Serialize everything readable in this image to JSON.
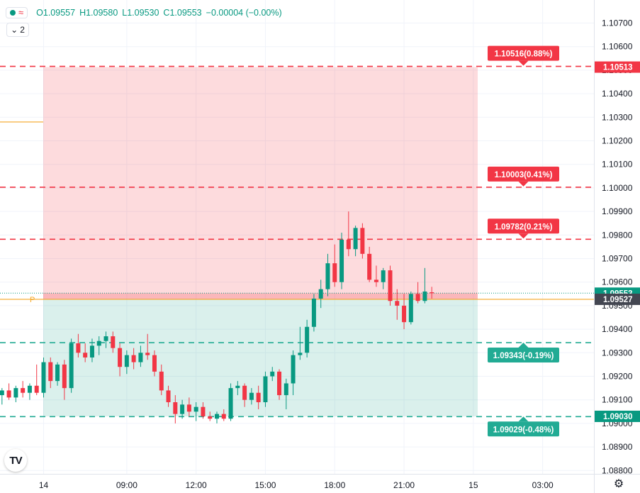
{
  "legend": {
    "ohlc": [
      {
        "label": "O",
        "value": "1.09557"
      },
      {
        "label": "H",
        "value": "1.09580"
      },
      {
        "label": "L",
        "value": "1.09530"
      },
      {
        "label": "C",
        "value": "1.09553"
      }
    ],
    "change": "−0.00004 (−0.00%)",
    "indicator_count": "2",
    "up_color": "#089981",
    "down_color": "#f23645"
  },
  "price_scale": {
    "ticks": [
      "1.10700",
      "1.10600",
      "1.10500",
      "1.10400",
      "1.10300",
      "1.10200",
      "1.10100",
      "1.10000",
      "1.09900",
      "1.09800",
      "1.09700",
      "1.09600",
      "1.09500",
      "1.09400",
      "1.09300",
      "1.09200",
      "1.09100",
      "1.09000",
      "1.08900",
      "1.08800"
    ],
    "badges": [
      {
        "text": "1.10513",
        "price": 1.10513,
        "color": "#f23645"
      },
      {
        "text": "1.09553",
        "price": 1.09553,
        "color": "#089981"
      },
      {
        "text": "1.09527",
        "price": 1.09527,
        "color": "#434651"
      },
      {
        "text": "1.09030",
        "price": 1.0903,
        "color": "#089981"
      }
    ]
  },
  "time_scale": {
    "labels": [
      {
        "text": "14",
        "index": 0
      },
      {
        "text": "09:00",
        "index": 12
      },
      {
        "text": "12:00",
        "index": 22
      },
      {
        "text": "15:00",
        "index": 32
      },
      {
        "text": "18:00",
        "index": 42
      },
      {
        "text": "21:00",
        "index": 52
      },
      {
        "text": "15",
        "index": 62
      },
      {
        "text": "03:00",
        "index": 72
      }
    ]
  },
  "position": {
    "entry": 1.09527,
    "stop_top": 1.10513,
    "target_bottom": 1.0903,
    "entry_marker": "P",
    "levels": [
      {
        "price": 1.10516,
        "label": "1.10516(0.88%)",
        "color": "#f23645"
      },
      {
        "price": 1.10003,
        "label": "1.10003(0.41%)",
        "color": "#f23645"
      },
      {
        "price": 1.09782,
        "label": "1.09782(0.21%)",
        "color": "#f23645"
      },
      {
        "price": 1.09343,
        "label": "1.09343(-0.19%)",
        "color": "#22ab94"
      },
      {
        "price": 1.09029,
        "label": "1.09029(-0.48%)",
        "color": "#22ab94"
      }
    ]
  },
  "chart_data": {
    "type": "candlestick",
    "symbol_interval": "15m",
    "price_range": [
      1.0874,
      1.108
    ],
    "current_price": 1.09553,
    "candles": [
      {
        "i": -6,
        "o": 1.0912,
        "h": 1.0915,
        "l": 1.0908,
        "c": 1.0914
      },
      {
        "i": -5,
        "o": 1.0914,
        "h": 1.0917,
        "l": 1.091,
        "c": 1.0911
      },
      {
        "i": -4,
        "o": 1.0911,
        "h": 1.0916,
        "l": 1.0909,
        "c": 1.0915
      },
      {
        "i": -3,
        "o": 1.0915,
        "h": 1.0918,
        "l": 1.0911,
        "c": 1.0913
      },
      {
        "i": -2,
        "o": 1.0913,
        "h": 1.0917,
        "l": 1.091,
        "c": 1.0916
      },
      {
        "i": -1,
        "o": 1.0916,
        "h": 1.0925,
        "l": 1.0912,
        "c": 1.0913
      },
      {
        "i": 0,
        "o": 1.0913,
        "h": 1.0928,
        "l": 1.0911,
        "c": 1.0926
      },
      {
        "i": 1,
        "o": 1.0926,
        "h": 1.0928,
        "l": 1.0915,
        "c": 1.0918
      },
      {
        "i": 2,
        "o": 1.0918,
        "h": 1.0926,
        "l": 1.0916,
        "c": 1.0925
      },
      {
        "i": 3,
        "o": 1.0925,
        "h": 1.0927,
        "l": 1.091,
        "c": 1.0915
      },
      {
        "i": 4,
        "o": 1.0915,
        "h": 1.0936,
        "l": 1.0913,
        "c": 1.0934
      },
      {
        "i": 5,
        "o": 1.0934,
        "h": 1.0938,
        "l": 1.0928,
        "c": 1.093
      },
      {
        "i": 6,
        "o": 1.093,
        "h": 1.0934,
        "l": 1.0926,
        "c": 1.0928
      },
      {
        "i": 7,
        "o": 1.0928,
        "h": 1.0936,
        "l": 1.0926,
        "c": 1.0933
      },
      {
        "i": 8,
        "o": 1.0933,
        "h": 1.0937,
        "l": 1.0929,
        "c": 1.0935
      },
      {
        "i": 9,
        "o": 1.0935,
        "h": 1.0939,
        "l": 1.0932,
        "c": 1.0937
      },
      {
        "i": 10,
        "o": 1.0937,
        "h": 1.0939,
        "l": 1.093,
        "c": 1.0932
      },
      {
        "i": 11,
        "o": 1.0932,
        "h": 1.0934,
        "l": 1.092,
        "c": 1.0924
      },
      {
        "i": 12,
        "o": 1.0924,
        "h": 1.0931,
        "l": 1.0921,
        "c": 1.0929
      },
      {
        "i": 13,
        "o": 1.0929,
        "h": 1.0932,
        "l": 1.0923,
        "c": 1.0926
      },
      {
        "i": 14,
        "o": 1.0926,
        "h": 1.0933,
        "l": 1.0924,
        "c": 1.093
      },
      {
        "i": 15,
        "o": 1.093,
        "h": 1.0938,
        "l": 1.0927,
        "c": 1.0929
      },
      {
        "i": 16,
        "o": 1.0929,
        "h": 1.0931,
        "l": 1.092,
        "c": 1.0922
      },
      {
        "i": 17,
        "o": 1.0922,
        "h": 1.0925,
        "l": 1.0912,
        "c": 1.0914
      },
      {
        "i": 18,
        "o": 1.0914,
        "h": 1.0916,
        "l": 1.0907,
        "c": 1.0909
      },
      {
        "i": 19,
        "o": 1.0909,
        "h": 1.0912,
        "l": 1.09,
        "c": 1.0904
      },
      {
        "i": 20,
        "o": 1.0904,
        "h": 1.091,
        "l": 1.0902,
        "c": 1.0908
      },
      {
        "i": 21,
        "o": 1.0908,
        "h": 1.0911,
        "l": 1.0903,
        "c": 1.0905
      },
      {
        "i": 22,
        "o": 1.0905,
        "h": 1.0909,
        "l": 1.0901,
        "c": 1.0907
      },
      {
        "i": 23,
        "o": 1.0907,
        "h": 1.0909,
        "l": 1.0902,
        "c": 1.0903
      },
      {
        "i": 24,
        "o": 1.0903,
        "h": 1.0905,
        "l": 1.0901,
        "c": 1.0902
      },
      {
        "i": 25,
        "o": 1.0902,
        "h": 1.0905,
        "l": 1.09,
        "c": 1.0904
      },
      {
        "i": 26,
        "o": 1.0904,
        "h": 1.0906,
        "l": 1.0901,
        "c": 1.0902
      },
      {
        "i": 27,
        "o": 1.0902,
        "h": 1.0917,
        "l": 1.0901,
        "c": 1.0915
      },
      {
        "i": 28,
        "o": 1.0915,
        "h": 1.0918,
        "l": 1.0912,
        "c": 1.0916
      },
      {
        "i": 29,
        "o": 1.0916,
        "h": 1.0917,
        "l": 1.0907,
        "c": 1.091
      },
      {
        "i": 30,
        "o": 1.091,
        "h": 1.0915,
        "l": 1.0908,
        "c": 1.0913
      },
      {
        "i": 31,
        "o": 1.0913,
        "h": 1.0916,
        "l": 1.0906,
        "c": 1.0909
      },
      {
        "i": 32,
        "o": 1.0909,
        "h": 1.0922,
        "l": 1.0907,
        "c": 1.092
      },
      {
        "i": 33,
        "o": 1.092,
        "h": 1.0924,
        "l": 1.0918,
        "c": 1.0922
      },
      {
        "i": 34,
        "o": 1.0922,
        "h": 1.0923,
        "l": 1.091,
        "c": 1.0912
      },
      {
        "i": 35,
        "o": 1.0912,
        "h": 1.0919,
        "l": 1.0906,
        "c": 1.0917
      },
      {
        "i": 36,
        "o": 1.0917,
        "h": 1.0931,
        "l": 1.0912,
        "c": 1.0929
      },
      {
        "i": 37,
        "o": 1.0929,
        "h": 1.0941,
        "l": 1.0927,
        "c": 1.093
      },
      {
        "i": 38,
        "o": 1.093,
        "h": 1.0944,
        "l": 1.0928,
        "c": 1.0941
      },
      {
        "i": 39,
        "o": 1.0941,
        "h": 1.0955,
        "l": 1.0939,
        "c": 1.0953
      },
      {
        "i": 40,
        "o": 1.0953,
        "h": 1.0961,
        "l": 1.0949,
        "c": 1.0957
      },
      {
        "i": 41,
        "o": 1.0957,
        "h": 1.0972,
        "l": 1.0954,
        "c": 1.0968
      },
      {
        "i": 42,
        "o": 1.0968,
        "h": 1.0976,
        "l": 1.0958,
        "c": 1.096
      },
      {
        "i": 43,
        "o": 1.096,
        "h": 1.0981,
        "l": 1.0957,
        "c": 1.0978
      },
      {
        "i": 44,
        "o": 1.0978,
        "h": 1.099,
        "l": 1.0971,
        "c": 1.0974
      },
      {
        "i": 45,
        "o": 1.0974,
        "h": 1.0984,
        "l": 1.0971,
        "c": 1.0983
      },
      {
        "i": 46,
        "o": 1.0983,
        "h": 1.0985,
        "l": 1.097,
        "c": 1.0972
      },
      {
        "i": 47,
        "o": 1.0972,
        "h": 1.0975,
        "l": 1.096,
        "c": 1.0961
      },
      {
        "i": 48,
        "o": 1.0961,
        "h": 1.0967,
        "l": 1.0958,
        "c": 1.096
      },
      {
        "i": 49,
        "o": 1.096,
        "h": 1.0966,
        "l": 1.0957,
        "c": 1.0965
      },
      {
        "i": 50,
        "o": 1.0965,
        "h": 1.0967,
        "l": 1.095,
        "c": 1.0952
      },
      {
        "i": 51,
        "o": 1.0952,
        "h": 1.0957,
        "l": 1.0944,
        "c": 1.095
      },
      {
        "i": 52,
        "o": 1.095,
        "h": 1.0955,
        "l": 1.094,
        "c": 1.0943
      },
      {
        "i": 53,
        "o": 1.0943,
        "h": 1.0956,
        "l": 1.0942,
        "c": 1.0955
      },
      {
        "i": 54,
        "o": 1.0955,
        "h": 1.096,
        "l": 1.0951,
        "c": 1.0952
      },
      {
        "i": 55,
        "o": 1.0952,
        "h": 1.0966,
        "l": 1.0951,
        "c": 1.0956
      },
      {
        "i": 56,
        "o": 1.09557,
        "h": 1.0958,
        "l": 1.0953,
        "c": 1.09553
      }
    ]
  }
}
